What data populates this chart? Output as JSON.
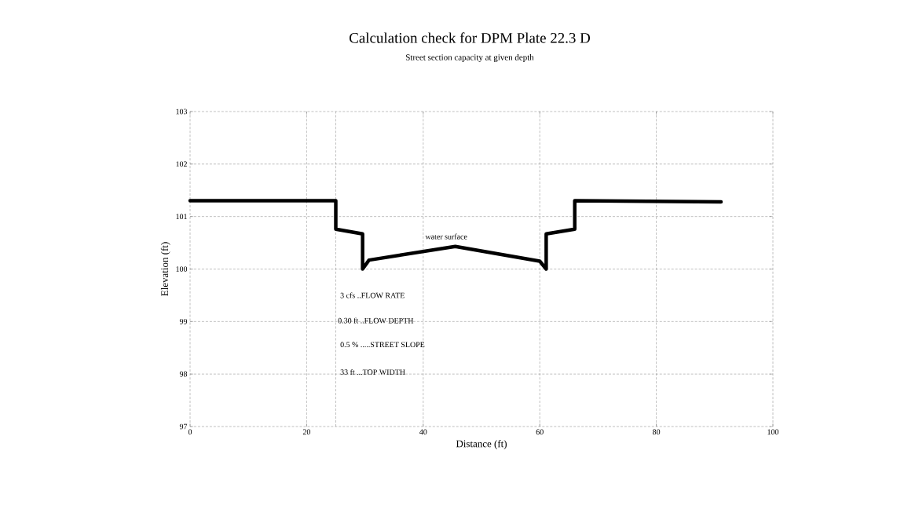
{
  "chart_data": {
    "type": "line",
    "title": "Calculation check for DPM Plate 22.3 D",
    "subtitle": "Street section capacity at given depth",
    "xlabel": "Distance (ft)",
    "ylabel": "Elevation (ft)",
    "x": [
      0,
      25,
      25,
      29.6,
      29.6,
      30.7,
      45.5,
      60.0,
      61.1,
      61.1,
      66.0,
      66.0,
      91.1
    ],
    "series": [
      {
        "color": "#000000",
        "values": [
          101.3,
          101.3,
          100.76,
          100.67,
          100.0,
          100.17,
          100.43,
          100.15,
          100.0,
          100.67,
          100.76,
          101.3,
          101.28
        ]
      }
    ],
    "xlim": [
      0,
      100
    ],
    "ylim": [
      97,
      103
    ],
    "xticks": [
      0,
      20,
      40,
      60,
      80,
      100
    ],
    "yticks": [
      97,
      98,
      99,
      100,
      101,
      102,
      103
    ],
    "grid": true,
    "marker": "none",
    "line_style": "solid",
    "ref_lines": [
      {
        "axis": "x",
        "value": 25,
        "line_style": "dashed"
      }
    ],
    "annotations": [
      "water surface",
      "3    cfs ..FLOW RATE",
      "0.30 ft ..FLOW DEPTH",
      "0.5 % .....STREET SLOPE",
      "33   ft ...TOP WIDTH"
    ]
  }
}
